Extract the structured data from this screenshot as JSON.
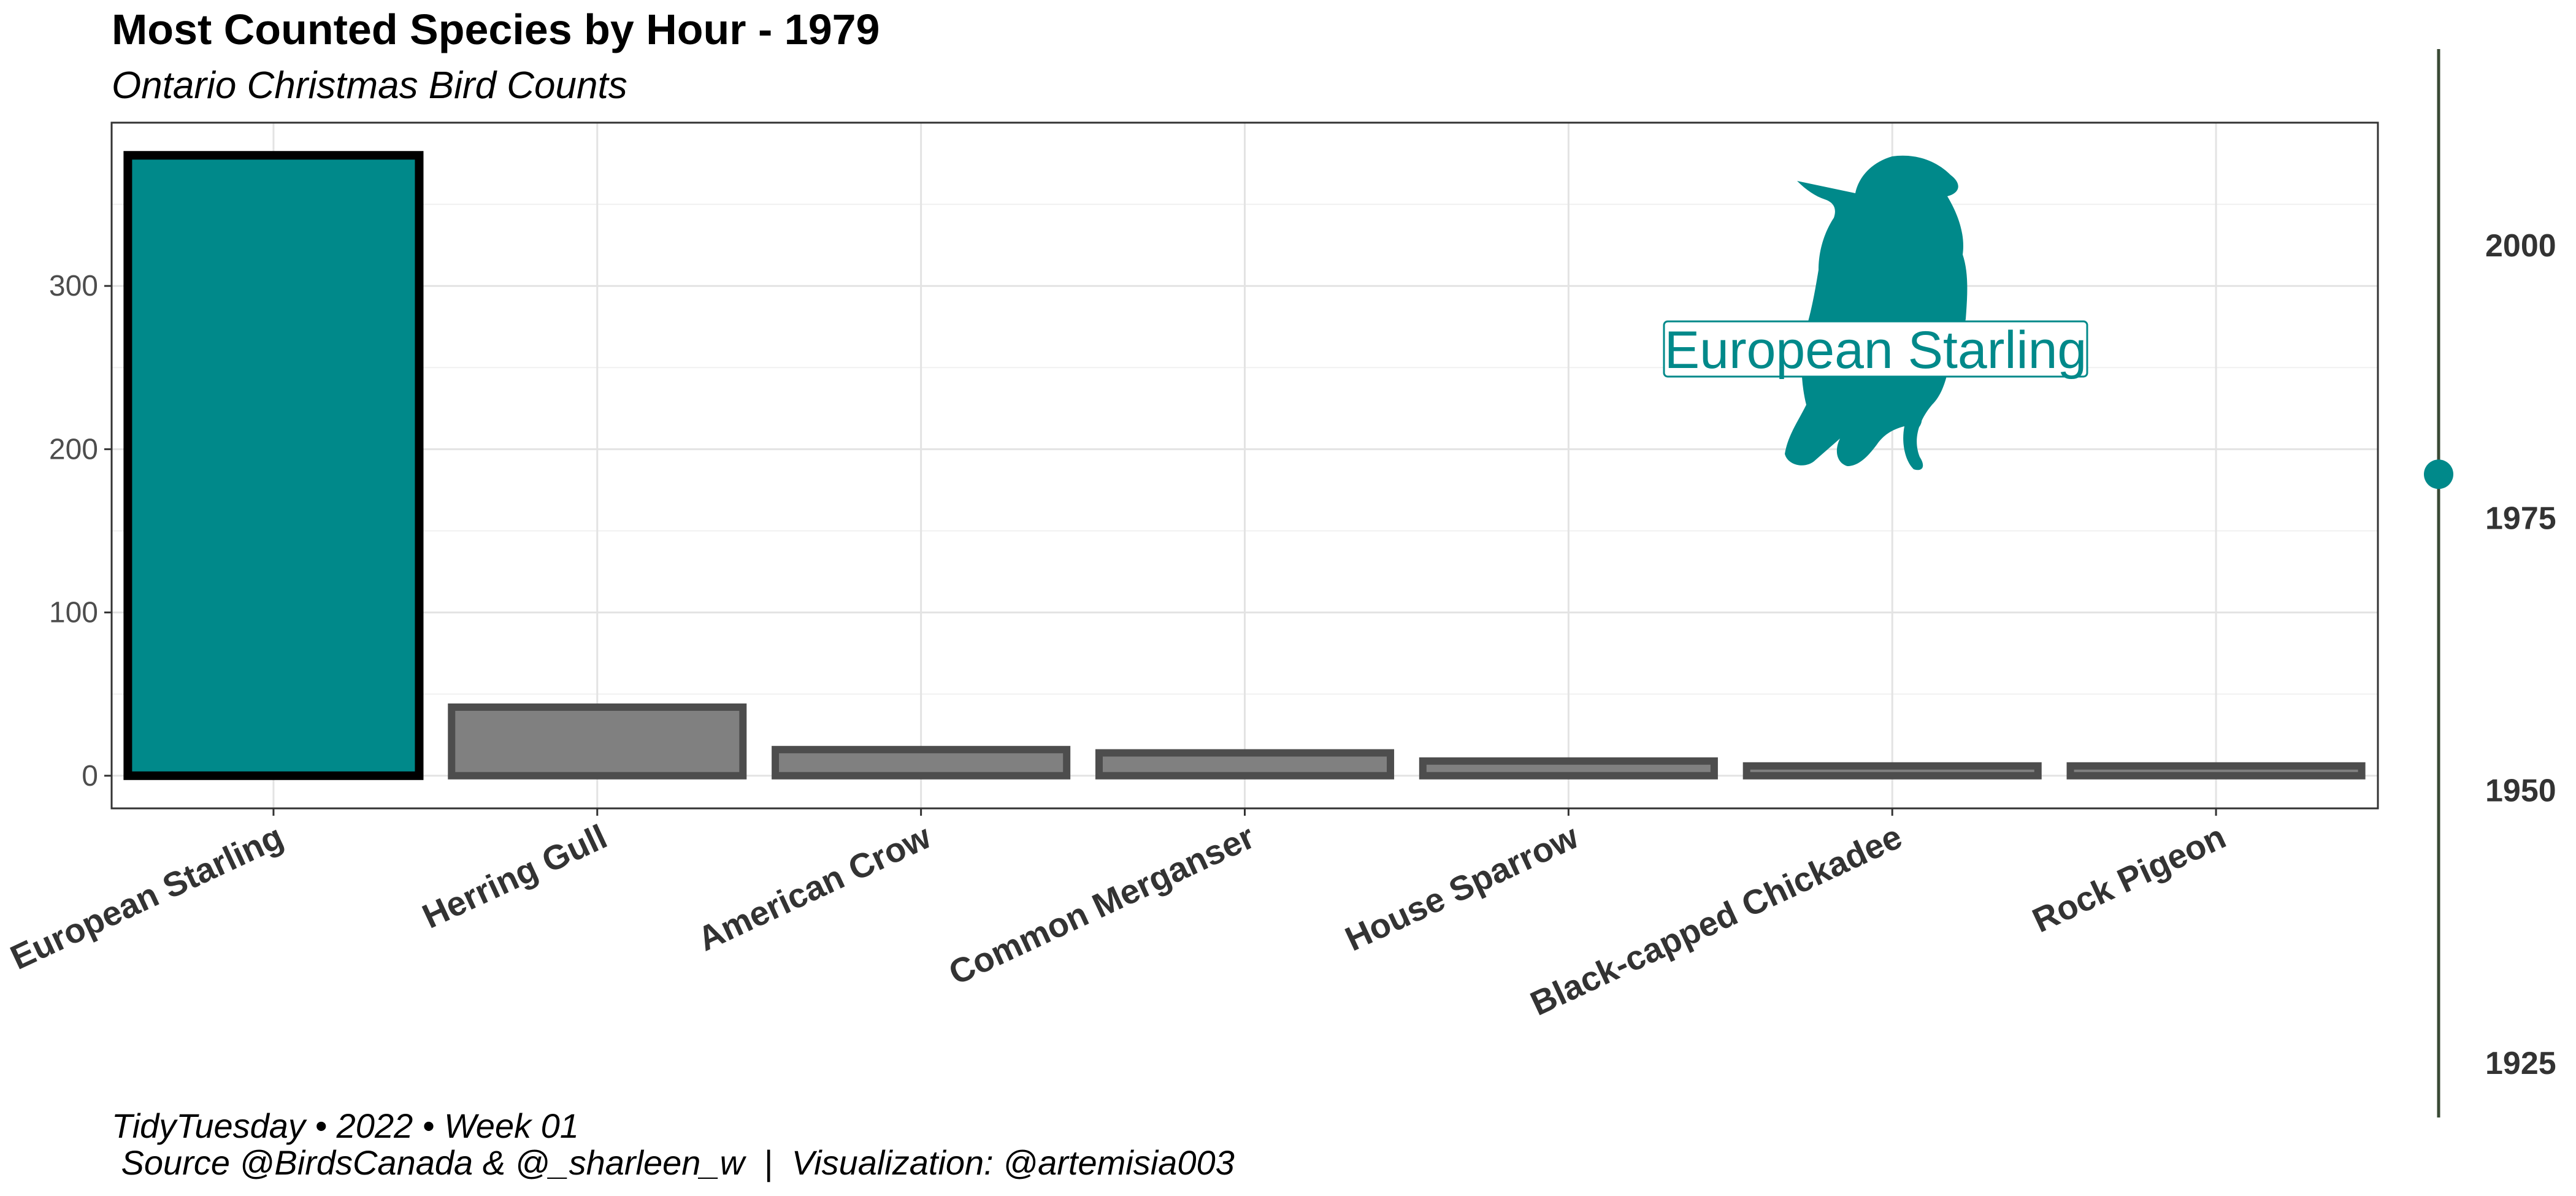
{
  "header": {
    "title": "Most Counted Species by Hour - 1979",
    "subtitle": "Ontario Christmas Bird Counts"
  },
  "caption": {
    "line1": "TidyTuesday • 2022 • Week 01",
    "line2": " Source @BirdsCanada & @_sharleen_w  |  Visualization: @artemisia003"
  },
  "colors": {
    "highlight": "#00898a",
    "bar": "#808080",
    "bar_outline": "#4d4d4d",
    "highlight_outline": "#000000",
    "timeline": "#3a4a35"
  },
  "chart_data": {
    "type": "bar",
    "categories": [
      "European Starling",
      "Herring Gull",
      "American Crow",
      "Common Merganser",
      "House Sparrow",
      "Black-capped Chickadee",
      "Rock Pigeon"
    ],
    "values": [
      380,
      42,
      16,
      14,
      9,
      6,
      6
    ],
    "highlighted": "European Starling",
    "highlight_label": "European Starling",
    "ylim": [
      -20,
      400
    ],
    "yticks": [
      0,
      100,
      200,
      300
    ],
    "grid": true,
    "icon": "bird-silhouette-icon",
    "timeline": {
      "ylim": [
        1920,
        2018
      ],
      "ticks": [
        1925,
        1950,
        1975,
        2000
      ],
      "current": 1979
    }
  }
}
